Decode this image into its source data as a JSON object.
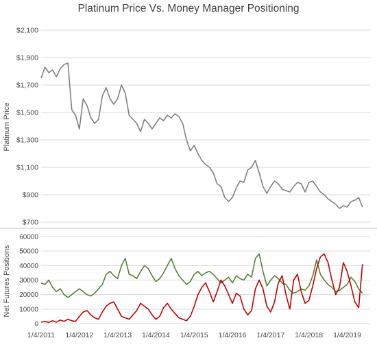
{
  "chart_data": [
    {
      "type": "line",
      "title": "Platinum Price Vs. Money Manager Positioning",
      "ylabel": "Platinum Price",
      "ylim": [
        700,
        2100
      ],
      "yticks": [
        700,
        900,
        1100,
        1300,
        1500,
        1700,
        1900,
        2100
      ],
      "yticklabels": [
        "$700",
        "$900",
        "$1,100",
        "$1,300",
        "$1,500",
        "$1,700",
        "$1,900",
        "$2,100"
      ],
      "grid": true,
      "series": [
        {
          "color": "#7f7f7f",
          "x": [
            2011.0,
            2011.1,
            2011.2,
            2011.3,
            2011.4,
            2011.5,
            2011.6,
            2011.7,
            2011.8,
            2011.9,
            2012.0,
            2012.1,
            2012.2,
            2012.3,
            2012.4,
            2012.5,
            2012.6,
            2012.7,
            2012.8,
            2012.9,
            2013.0,
            2013.1,
            2013.2,
            2013.3,
            2013.4,
            2013.5,
            2013.6,
            2013.7,
            2013.8,
            2013.9,
            2014.0,
            2014.1,
            2014.2,
            2014.3,
            2014.4,
            2014.5,
            2014.6,
            2014.7,
            2014.8,
            2014.9,
            2015.0,
            2015.1,
            2015.2,
            2015.3,
            2015.4,
            2015.5,
            2015.6,
            2015.7,
            2015.8,
            2015.9,
            2016.0,
            2016.1,
            2016.2,
            2016.3,
            2016.4,
            2016.5,
            2016.6,
            2016.7,
            2016.8,
            2016.9,
            2017.0,
            2017.1,
            2017.2,
            2017.3,
            2017.4,
            2017.5,
            2017.6,
            2017.7,
            2017.8,
            2017.9,
            2018.0,
            2018.1,
            2018.2,
            2018.3,
            2018.4,
            2018.5,
            2018.6,
            2018.7,
            2018.8,
            2018.9,
            2019.0,
            2019.1,
            2019.2,
            2019.3,
            2019.4
          ],
          "values": [
            1750,
            1830,
            1790,
            1810,
            1760,
            1820,
            1850,
            1860,
            1520,
            1480,
            1380,
            1600,
            1550,
            1460,
            1420,
            1450,
            1620,
            1680,
            1600,
            1560,
            1600,
            1700,
            1640,
            1480,
            1450,
            1420,
            1360,
            1450,
            1420,
            1380,
            1420,
            1460,
            1440,
            1480,
            1460,
            1490,
            1470,
            1420,
            1300,
            1220,
            1260,
            1200,
            1150,
            1120,
            1100,
            1060,
            980,
            960,
            880,
            850,
            880,
            950,
            1000,
            990,
            1080,
            1100,
            1150,
            1060,
            960,
            910,
            960,
            1000,
            980,
            940,
            930,
            920,
            960,
            990,
            980,
            920,
            990,
            1000,
            960,
            920,
            900,
            870,
            850,
            830,
            800,
            820,
            810,
            850,
            860,
            880,
            810
          ]
        }
      ]
    },
    {
      "type": "line",
      "ylabel": "Net Futures Positions",
      "ylim": [
        0,
        60000
      ],
      "yticks": [
        0,
        10000,
        20000,
        30000,
        40000,
        50000,
        60000
      ],
      "yticklabels": [
        "0",
        "10000",
        "20000",
        "30000",
        "40000",
        "50000",
        "60000"
      ],
      "xticklabels": [
        "1/4/2011",
        "1/4/2012",
        "1/4/2013",
        "1/4/2014",
        "1/4/2015",
        "1/4/2016",
        "1/4/2017",
        "1/4/2018",
        "1/4/2019"
      ],
      "grid": true,
      "series": [
        {
          "color": "#538135",
          "x": [
            2011.0,
            2011.1,
            2011.2,
            2011.3,
            2011.4,
            2011.5,
            2011.6,
            2011.7,
            2011.8,
            2011.9,
            2012.0,
            2012.1,
            2012.2,
            2012.3,
            2012.4,
            2012.5,
            2012.6,
            2012.7,
            2012.8,
            2012.9,
            2013.0,
            2013.1,
            2013.2,
            2013.3,
            2013.4,
            2013.5,
            2013.6,
            2013.7,
            2013.8,
            2013.9,
            2014.0,
            2014.1,
            2014.2,
            2014.3,
            2014.4,
            2014.5,
            2014.6,
            2014.7,
            2014.8,
            2014.9,
            2015.0,
            2015.1,
            2015.2,
            2015.3,
            2015.4,
            2015.5,
            2015.6,
            2015.7,
            2015.8,
            2015.9,
            2016.0,
            2016.1,
            2016.2,
            2016.3,
            2016.4,
            2016.5,
            2016.6,
            2016.7,
            2016.8,
            2016.9,
            2017.0,
            2017.1,
            2017.2,
            2017.3,
            2017.4,
            2017.5,
            2017.6,
            2017.7,
            2017.8,
            2017.9,
            2018.0,
            2018.1,
            2018.2,
            2018.3,
            2018.4,
            2018.5,
            2018.6,
            2018.7,
            2018.8,
            2018.9,
            2019.0,
            2019.1,
            2019.2,
            2019.3,
            2019.4
          ],
          "values": [
            28000,
            27000,
            30000,
            25000,
            22000,
            24000,
            20000,
            18000,
            20000,
            22000,
            24000,
            22000,
            20000,
            19000,
            21000,
            24000,
            27000,
            34000,
            36000,
            33000,
            31000,
            40000,
            45000,
            34000,
            33000,
            31000,
            36000,
            40000,
            38000,
            33000,
            29000,
            31000,
            35000,
            40000,
            45000,
            38000,
            33000,
            30000,
            27000,
            29000,
            34000,
            36000,
            33000,
            35000,
            36000,
            34000,
            31000,
            28000,
            30000,
            32000,
            28000,
            33000,
            31000,
            30000,
            34000,
            32000,
            45000,
            48000,
            36000,
            26000,
            30000,
            33000,
            31000,
            28000,
            27000,
            23000,
            21000,
            22000,
            24000,
            23000,
            26000,
            33000,
            44000,
            34000,
            30000,
            27000,
            25000,
            22000,
            23000,
            25000,
            27000,
            32000,
            29000,
            24000,
            21000
          ]
        },
        {
          "color": "#c00000",
          "x": [
            2011.0,
            2011.1,
            2011.2,
            2011.3,
            2011.4,
            2011.5,
            2011.6,
            2011.7,
            2011.8,
            2011.9,
            2012.0,
            2012.1,
            2012.2,
            2012.3,
            2012.4,
            2012.5,
            2012.6,
            2012.7,
            2012.8,
            2012.9,
            2013.0,
            2013.1,
            2013.2,
            2013.3,
            2013.4,
            2013.5,
            2013.6,
            2013.7,
            2013.8,
            2013.9,
            2014.0,
            2014.1,
            2014.2,
            2014.3,
            2014.4,
            2014.5,
            2014.6,
            2014.7,
            2014.8,
            2014.9,
            2015.0,
            2015.1,
            2015.2,
            2015.3,
            2015.4,
            2015.5,
            2015.6,
            2015.7,
            2015.8,
            2015.9,
            2016.0,
            2016.1,
            2016.2,
            2016.3,
            2016.4,
            2016.5,
            2016.6,
            2016.7,
            2016.8,
            2016.9,
            2017.0,
            2017.1,
            2017.2,
            2017.3,
            2017.4,
            2017.5,
            2017.6,
            2017.7,
            2017.8,
            2017.9,
            2018.0,
            2018.1,
            2018.2,
            2018.3,
            2018.4,
            2018.5,
            2018.6,
            2018.7,
            2018.8,
            2018.9,
            2019.0,
            2019.1,
            2019.2,
            2019.3,
            2019.4
          ],
          "values": [
            1000,
            1500,
            800,
            2000,
            1000,
            2500,
            1500,
            3000,
            2000,
            1500,
            5000,
            8000,
            9000,
            6000,
            4000,
            3000,
            8000,
            12000,
            14000,
            15000,
            10000,
            5000,
            4000,
            3000,
            6000,
            9000,
            14000,
            12000,
            10000,
            6000,
            3000,
            5000,
            11000,
            14000,
            10000,
            7000,
            4000,
            3000,
            2000,
            5000,
            12000,
            20000,
            25000,
            28000,
            22000,
            15000,
            22000,
            30000,
            26000,
            20000,
            14000,
            21000,
            19000,
            10000,
            6000,
            9000,
            24000,
            30000,
            24000,
            12000,
            8000,
            15000,
            28000,
            33000,
            20000,
            10000,
            30000,
            34000,
            22000,
            14000,
            16000,
            26000,
            38000,
            46000,
            48000,
            42000,
            30000,
            20000,
            25000,
            42000,
            36000,
            26000,
            15000,
            11000,
            41000
          ]
        }
      ]
    }
  ]
}
